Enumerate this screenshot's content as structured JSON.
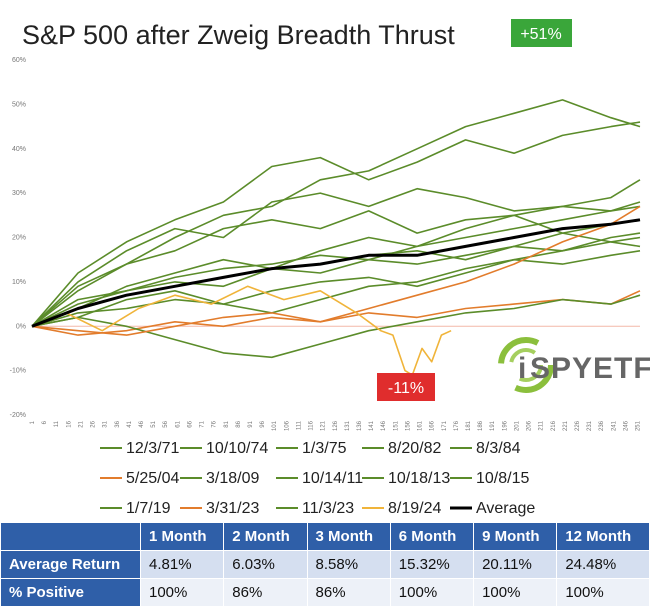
{
  "chart_data": {
    "type": "line",
    "title": "S&P 500 after Zweig Breadth Thrust",
    "y_ticks": [
      "60%",
      "50%",
      "40%",
      "30%",
      "20%",
      "10%",
      "0%",
      "-10%",
      "-20%"
    ],
    "ylim": [
      -20,
      60
    ],
    "x_ticks": [
      "1",
      "6",
      "11",
      "16",
      "21",
      "26",
      "31",
      "36",
      "41",
      "46",
      "51",
      "56",
      "61",
      "66",
      "71",
      "76",
      "81",
      "86",
      "91",
      "96",
      "101",
      "106",
      "111",
      "116",
      "121",
      "126",
      "131",
      "136",
      "141",
      "146",
      "151",
      "156",
      "161",
      "166",
      "171",
      "176",
      "181",
      "186",
      "191",
      "196",
      "201",
      "206",
      "211",
      "216",
      "221",
      "226",
      "231",
      "236",
      "241",
      "246",
      "251"
    ],
    "xlim": [
      1,
      252
    ],
    "zero_line_color": "#f4b8a8",
    "series": [
      {
        "name": "12/3/71",
        "color": "#5b8c2a",
        "x": [
          1,
          20,
          40,
          60,
          80,
          100,
          120,
          140,
          160,
          180,
          200,
          220,
          240,
          252
        ],
        "y": [
          0,
          4,
          9,
          12,
          15,
          13,
          17,
          20,
          18,
          22,
          25,
          21,
          19,
          18
        ]
      },
      {
        "name": "10/10/74",
        "color": "#5b8c2a",
        "x": [
          1,
          20,
          40,
          60,
          80,
          100,
          120,
          140,
          160,
          180,
          200,
          220,
          240,
          252
        ],
        "y": [
          0,
          10,
          17,
          22,
          20,
          28,
          30,
          27,
          31,
          29,
          26,
          27,
          29,
          33
        ]
      },
      {
        "name": "1/3/75",
        "color": "#5b8c2a",
        "x": [
          1,
          20,
          40,
          60,
          80,
          100,
          120,
          140,
          160,
          180,
          200,
          220,
          240,
          252
        ],
        "y": [
          0,
          8,
          14,
          20,
          25,
          27,
          33,
          35,
          40,
          45,
          48,
          51,
          47,
          45
        ]
      },
      {
        "name": "8/20/82",
        "color": "#5b8c2a",
        "x": [
          1,
          20,
          40,
          60,
          80,
          100,
          120,
          140,
          160,
          180,
          200,
          220,
          240,
          252
        ],
        "y": [
          0,
          12,
          19,
          24,
          28,
          36,
          38,
          33,
          37,
          42,
          39,
          43,
          45,
          46
        ]
      },
      {
        "name": "8/3/84",
        "color": "#5b8c2a",
        "x": [
          1,
          20,
          40,
          60,
          80,
          100,
          120,
          140,
          160,
          180,
          200,
          220,
          240,
          252
        ],
        "y": [
          0,
          5,
          8,
          10,
          9,
          13,
          12,
          15,
          14,
          16,
          18,
          17,
          20,
          21
        ]
      },
      {
        "name": "5/25/04",
        "color": "#e27c2c",
        "x": [
          1,
          20,
          40,
          60,
          80,
          100,
          120,
          140,
          160,
          180,
          200,
          220,
          240,
          252
        ],
        "y": [
          0,
          -2,
          -1,
          1,
          0,
          2,
          1,
          3,
          2,
          4,
          5,
          6,
          5,
          8
        ]
      },
      {
        "name": "3/18/09",
        "color": "#5b8c2a",
        "x": [
          1,
          20,
          40,
          60,
          80,
          100,
          120,
          140,
          160,
          180,
          200,
          220,
          240,
          252
        ],
        "y": [
          0,
          9,
          14,
          17,
          22,
          24,
          22,
          26,
          21,
          24,
          25,
          27,
          26,
          28
        ]
      },
      {
        "name": "10/14/11",
        "color": "#5b8c2a",
        "x": [
          1,
          20,
          40,
          60,
          80,
          100,
          120,
          140,
          160,
          180,
          200,
          220,
          240,
          252
        ],
        "y": [
          0,
          2,
          6,
          8,
          5,
          3,
          6,
          9,
          10,
          13,
          15,
          17,
          19,
          20
        ]
      },
      {
        "name": "10/18/13",
        "color": "#5b8c2a",
        "x": [
          1,
          20,
          40,
          60,
          80,
          100,
          120,
          140,
          160,
          180,
          200,
          220,
          240,
          252
        ],
        "y": [
          0,
          3,
          4,
          6,
          5,
          8,
          10,
          11,
          9,
          12,
          15,
          14,
          16,
          17
        ]
      },
      {
        "name": "10/8/15",
        "color": "#5b8c2a",
        "x": [
          1,
          20,
          40,
          60,
          80,
          100,
          120,
          140,
          160,
          180,
          200,
          220,
          240,
          252
        ],
        "y": [
          0,
          2,
          0,
          -3,
          -6,
          -7,
          -4,
          -1,
          1,
          3,
          4,
          6,
          5,
          7
        ]
      },
      {
        "name": "1/7/19",
        "color": "#5b8c2a",
        "x": [
          1,
          20,
          40,
          60,
          80,
          100,
          120,
          140,
          160,
          180,
          200,
          220,
          240,
          252
        ],
        "y": [
          0,
          6,
          8,
          11,
          13,
          14,
          16,
          15,
          18,
          20,
          22,
          24,
          26,
          27
        ]
      },
      {
        "name": "3/31/23",
        "color": "#e27c2c",
        "x": [
          1,
          20,
          40,
          60,
          80,
          100,
          120,
          140,
          160,
          180,
          200,
          220,
          240,
          252
        ],
        "y": [
          0,
          -1,
          -2,
          0,
          2,
          3,
          1,
          4,
          7,
          10,
          14,
          19,
          23,
          27
        ]
      },
      {
        "name": "11/3/23",
        "color": "#5b8c2a",
        "x": [
          1,
          20,
          40,
          60,
          80,
          100,
          120,
          140,
          160,
          180,
          200,
          220,
          240,
          252
        ],
        "y": [
          0,
          4,
          7,
          9,
          11,
          13,
          14,
          16,
          17,
          15,
          18,
          21,
          23,
          24
        ]
      },
      {
        "name": "8/19/24",
        "color": "#f0b43a",
        "x": [
          1,
          15,
          30,
          45,
          60,
          75,
          90,
          105,
          120,
          135,
          145,
          150,
          155,
          158,
          162,
          166,
          170,
          174
        ],
        "y": [
          0,
          3,
          -1,
          4,
          7,
          5,
          9,
          6,
          8,
          3,
          -1,
          -2,
          -10,
          -11,
          -5,
          -8,
          -2,
          -1
        ]
      },
      {
        "name": "Average",
        "color": "#000000",
        "x": [
          1,
          20,
          40,
          60,
          80,
          100,
          120,
          140,
          160,
          180,
          200,
          220,
          240,
          252
        ],
        "y": [
          0,
          4,
          7,
          9,
          11,
          13,
          14,
          16,
          16,
          18,
          20,
          22,
          23,
          24
        ]
      }
    ],
    "annotations": [
      {
        "text": "+51%",
        "color": "#3aa63a"
      },
      {
        "text": "-11%",
        "color": "#e02d2d"
      }
    ],
    "legend_position": "bottom"
  },
  "logo": {
    "text": "SPYETF",
    "prefix": "i"
  },
  "stats_table": {
    "headers": [
      "",
      "1 Month",
      "2 Month",
      "3 Month",
      "6 Month",
      "9 Month",
      "12 Month"
    ],
    "rows": [
      {
        "label": "Average Return",
        "values": [
          "4.81%",
          "6.03%",
          "8.58%",
          "15.32%",
          "20.11%",
          "24.48%"
        ]
      },
      {
        "label": "% Positive",
        "values": [
          "100%",
          "86%",
          "86%",
          "100%",
          "100%",
          "100%"
        ]
      }
    ]
  }
}
